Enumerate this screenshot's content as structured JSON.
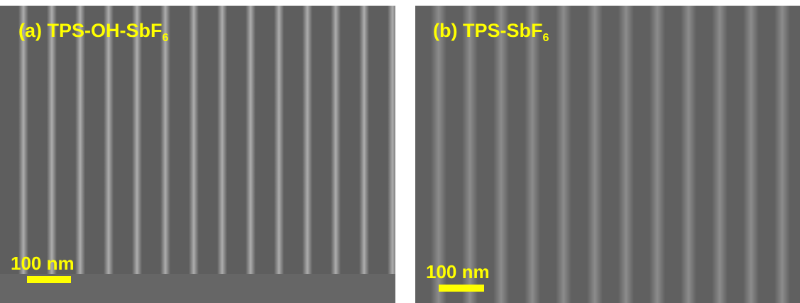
{
  "panels": [
    {
      "title": "(a) TPS-OH-SbF",
      "title_subscript": "6",
      "scale_bar": "100 nm"
    },
    {
      "title": "(b) TPS-SbF",
      "title_subscript": "6",
      "scale_bar": "100 nm"
    }
  ]
}
